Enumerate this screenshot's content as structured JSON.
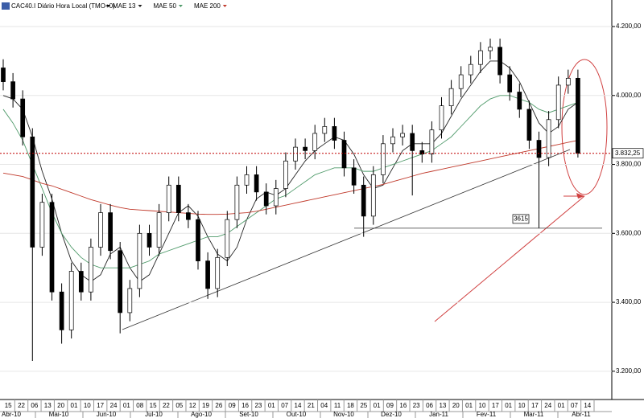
{
  "chart_data": {
    "type": "candlestick",
    "title": "CAC40.I Diário Hora Local (TMO+0)",
    "ylim": [
      3118,
      4277
    ],
    "yticks": [
      {
        "value": 3200,
        "label": "3.200,00"
      },
      {
        "value": 3400,
        "label": "3.400,00"
      },
      {
        "value": 3600,
        "label": "3.600,00"
      },
      {
        "value": 3800,
        "label": "3.800,00"
      },
      {
        "value": 4000,
        "label": "4.000,00"
      },
      {
        "value": 4200,
        "label": "4.200,00"
      }
    ],
    "day_labels": [
      "15",
      "22",
      "06",
      "13",
      "20",
      "01",
      "10",
      "17",
      "24",
      "01",
      "08",
      "15",
      "22",
      "05",
      "12",
      "19",
      "26",
      "09",
      "16",
      "23",
      "01",
      "07",
      "14",
      "21",
      "04",
      "11",
      "18",
      "25",
      "01",
      "09",
      "16",
      "23",
      "06",
      "13",
      "20",
      "01",
      "10",
      "17",
      "01",
      "10",
      "17",
      "24",
      "01",
      "07",
      "14"
    ],
    "month_labels": [
      "Abr-10",
      "Mai-10",
      "Jun-10",
      "Jul-10",
      "Ago-10",
      "Set-10",
      "Out-10",
      "Nov-10",
      "Dez-10",
      "Jan-11",
      "Fev-11",
      "Mar-11",
      "Abr-11"
    ],
    "candle_color_up": "#ffffff",
    "candle_color_down": "#000000",
    "open": [
      4080,
      4040,
      3990,
      3880,
      3560,
      3690,
      3430,
      3320,
      3490,
      3430,
      3560,
      3660,
      3550,
      3370,
      3440,
      3600,
      3560,
      3660,
      3740,
      3660,
      3640,
      3520,
      3440,
      3530,
      3640,
      3740,
      3770,
      3720,
      3680,
      3730,
      3810,
      3850,
      3840,
      3890,
      3910,
      3870,
      3790,
      3740,
      3650,
      3770,
      3860,
      3880,
      3890,
      3840,
      3830,
      3900,
      3970,
      4020,
      4060,
      4090,
      4130,
      4140,
      4060,
      4010,
      3960,
      3870,
      3820,
      3930,
      4030,
      4050
    ],
    "high": [
      4105,
      4065,
      4015,
      3905,
      3715,
      3715,
      3455,
      3515,
      3515,
      3585,
      3685,
      3685,
      3575,
      3465,
      3625,
      3625,
      3685,
      3765,
      3765,
      3685,
      3665,
      3545,
      3555,
      3665,
      3765,
      3795,
      3795,
      3745,
      3755,
      3835,
      3875,
      3875,
      3915,
      3935,
      3935,
      3895,
      3815,
      3765,
      3795,
      3885,
      3905,
      3915,
      3915,
      3865,
      3925,
      3995,
      4045,
      4085,
      4115,
      4155,
      4165,
      4165,
      4085,
      4035,
      3985,
      3895,
      3955,
      4055,
      4075,
      4075
    ],
    "low": [
      4015,
      3965,
      3855,
      3230,
      3535,
      3405,
      3280,
      3295,
      3405,
      3405,
      3535,
      3525,
      3310,
      3345,
      3415,
      3535,
      3535,
      3635,
      3635,
      3615,
      3495,
      3410,
      3415,
      3505,
      3615,
      3715,
      3695,
      3655,
      3655,
      3705,
      3785,
      3815,
      3815,
      3865,
      3845,
      3765,
      3715,
      3590,
      3625,
      3745,
      3835,
      3855,
      3710,
      3805,
      3805,
      3875,
      3945,
      3995,
      4035,
      4065,
      4105,
      4035,
      3985,
      3935,
      3845,
      3615,
      3795,
      3905,
      4005,
      3820
    ],
    "close": [
      4040,
      3990,
      3880,
      3560,
      3690,
      3430,
      3320,
      3490,
      3430,
      3560,
      3660,
      3550,
      3370,
      3440,
      3600,
      3560,
      3660,
      3740,
      3660,
      3640,
      3520,
      3440,
      3530,
      3640,
      3740,
      3770,
      3720,
      3680,
      3730,
      3810,
      3850,
      3840,
      3890,
      3910,
      3870,
      3790,
      3740,
      3650,
      3770,
      3860,
      3880,
      3890,
      3840,
      3830,
      3900,
      3970,
      4020,
      4060,
      4090,
      4130,
      4140,
      4060,
      4010,
      3960,
      3870,
      3820,
      3930,
      4030,
      4050,
      3832.25
    ],
    "last_price": 3832.25,
    "last_price_label": "3.832,25",
    "last_price_color": "#c00000",
    "series": [
      {
        "name": "MAE 13",
        "color": "#222222",
        "values": [
          4000,
          3990,
          3960,
          3880,
          3780,
          3700,
          3600,
          3520,
          3480,
          3460,
          3480,
          3540,
          3560,
          3500,
          3460,
          3480,
          3540,
          3600,
          3660,
          3680,
          3650,
          3590,
          3540,
          3520,
          3560,
          3640,
          3700,
          3720,
          3710,
          3730,
          3770,
          3810,
          3840,
          3860,
          3880,
          3870,
          3830,
          3770,
          3730,
          3740,
          3790,
          3840,
          3860,
          3860,
          3860,
          3890,
          3940,
          3990,
          4030,
          4070,
          4100,
          4100,
          4080,
          4040,
          3980,
          3920,
          3890,
          3910,
          3960,
          3980
        ]
      },
      {
        "name": "MAE 50",
        "color": "#4f9a6a",
        "values": [
          3960,
          3920,
          3870,
          3800,
          3730,
          3660,
          3600,
          3560,
          3530,
          3510,
          3500,
          3500,
          3500,
          3500,
          3510,
          3520,
          3540,
          3550,
          3560,
          3570,
          3580,
          3590,
          3590,
          3600,
          3620,
          3640,
          3660,
          3680,
          3700,
          3710,
          3730,
          3750,
          3770,
          3780,
          3790,
          3790,
          3790,
          3780,
          3780,
          3790,
          3800,
          3810,
          3820,
          3830,
          3840,
          3860,
          3880,
          3910,
          3940,
          3970,
          3990,
          4000,
          4000,
          3990,
          3980,
          3960,
          3950,
          3960,
          3970,
          3980
        ]
      },
      {
        "name": "MAE 200",
        "color": "#c0392b",
        "values": [
          3775,
          3770,
          3765,
          3755,
          3745,
          3738,
          3728,
          3718,
          3708,
          3698,
          3690,
          3682,
          3675,
          3670,
          3668,
          3666,
          3664,
          3662,
          3660,
          3658,
          3656,
          3655,
          3655,
          3656,
          3658,
          3660,
          3664,
          3670,
          3676,
          3682,
          3688,
          3694,
          3700,
          3706,
          3712,
          3718,
          3724,
          3730,
          3736,
          3742,
          3750,
          3758,
          3766,
          3774,
          3780,
          3786,
          3792,
          3798,
          3804,
          3810,
          3816,
          3822,
          3828,
          3834,
          3840,
          3846,
          3852,
          3858,
          3864,
          3870
        ]
      }
    ],
    "annotation": {
      "value": 3615,
      "label": "3615"
    }
  }
}
